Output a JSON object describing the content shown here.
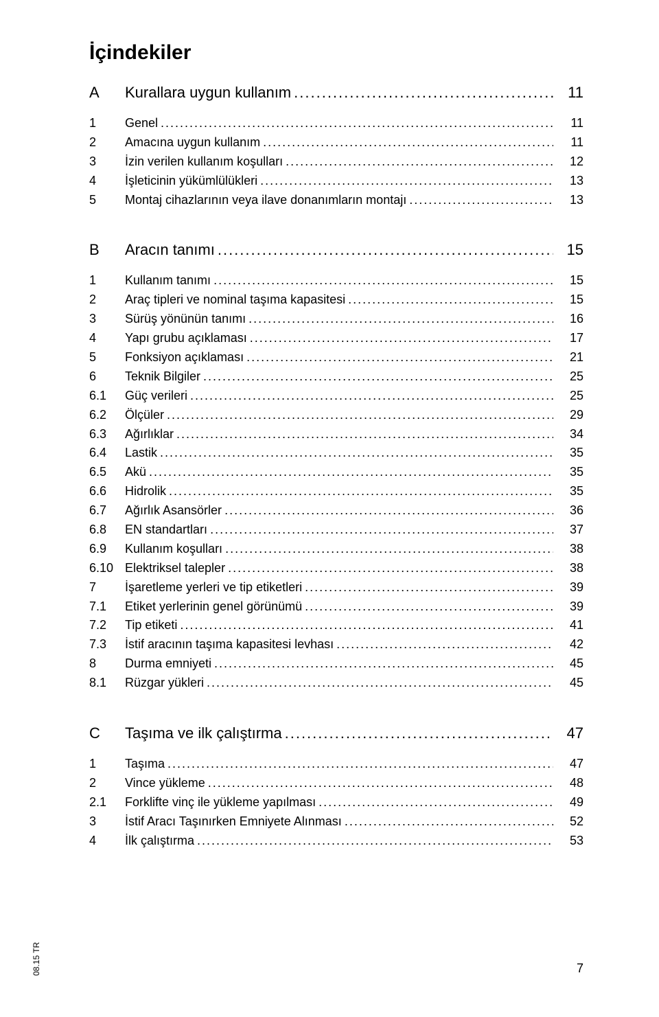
{
  "title": "İçindekiler",
  "leader_dots": ".......................................................................................................................................................................................",
  "sections": [
    {
      "num": "A",
      "label": "Kurallara uygun kullanım",
      "page": "11",
      "entries": [
        {
          "num": "1",
          "label": "Genel",
          "page": "11"
        },
        {
          "num": "2",
          "label": "Amacına uygun kullanım",
          "page": "11"
        },
        {
          "num": "3",
          "label": "İzin verilen kullanım koşulları",
          "page": "12"
        },
        {
          "num": "4",
          "label": "İşleticinin yükümlülükleri",
          "page": "13"
        },
        {
          "num": "5",
          "label": "Montaj cihazlarının veya ilave donanımların montajı",
          "page": "13"
        }
      ]
    },
    {
      "num": "B",
      "label": "Aracın tanımı",
      "page": "15",
      "entries": [
        {
          "num": "1",
          "label": "Kullanım tanımı",
          "page": "15"
        },
        {
          "num": "2",
          "label": "Araç tipleri ve nominal taşıma kapasitesi",
          "page": "15"
        },
        {
          "num": "3",
          "label": "Sürüş yönünün tanımı",
          "page": "16"
        },
        {
          "num": "4",
          "label": "Yapı grubu açıklaması",
          "page": "17"
        },
        {
          "num": "5",
          "label": "Fonksiyon açıklaması",
          "page": "21"
        },
        {
          "num": "6",
          "label": "Teknik Bilgiler",
          "page": "25"
        },
        {
          "num": "6.1",
          "label": "Güç verileri",
          "page": "25"
        },
        {
          "num": "6.2",
          "label": "Ölçüler",
          "page": "29"
        },
        {
          "num": "6.3",
          "label": "Ağırlıklar",
          "page": "34"
        },
        {
          "num": "6.4",
          "label": "Lastik",
          "page": "35"
        },
        {
          "num": "6.5",
          "label": "Akü",
          "page": "35"
        },
        {
          "num": "6.6",
          "label": "Hidrolik",
          "page": "35"
        },
        {
          "num": "6.7",
          "label": "Ağırlık Asansörler",
          "page": "36"
        },
        {
          "num": "6.8",
          "label": "EN standartları",
          "page": "37"
        },
        {
          "num": "6.9",
          "label": "Kullanım koşulları",
          "page": "38"
        },
        {
          "num": "6.10",
          "label": "Elektriksel talepler",
          "page": "38"
        },
        {
          "num": "7",
          "label": "İşaretleme yerleri ve tip etiketleri",
          "page": "39"
        },
        {
          "num": "7.1",
          "label": "Etiket yerlerinin genel görünümü",
          "page": "39"
        },
        {
          "num": "7.2",
          "label": "Tip etiketi",
          "page": "41"
        },
        {
          "num": "7.3",
          "label": "İstif aracının taşıma kapasitesi levhası",
          "page": "42"
        },
        {
          "num": "8",
          "label": "Durma emniyeti",
          "page": "45"
        },
        {
          "num": "8.1",
          "label": "Rüzgar yükleri",
          "page": "45"
        }
      ]
    },
    {
      "num": "C",
      "label": "Taşıma ve ilk çalıştırma",
      "page": "47",
      "entries": [
        {
          "num": "1",
          "label": "Taşıma",
          "page": "47"
        },
        {
          "num": "2",
          "label": "Vince yükleme",
          "page": "48"
        },
        {
          "num": "2.1",
          "label": "Forklifte vinç ile yükleme yapılması",
          "page": "49"
        },
        {
          "num": "3",
          "label": "İstif Aracı Taşınırken Emniyete Alınması",
          "page": "52"
        },
        {
          "num": "4",
          "label": "İlk çalıştırma",
          "page": "53"
        }
      ]
    }
  ],
  "footer": {
    "code": "08.15 TR",
    "page_number": "7"
  }
}
